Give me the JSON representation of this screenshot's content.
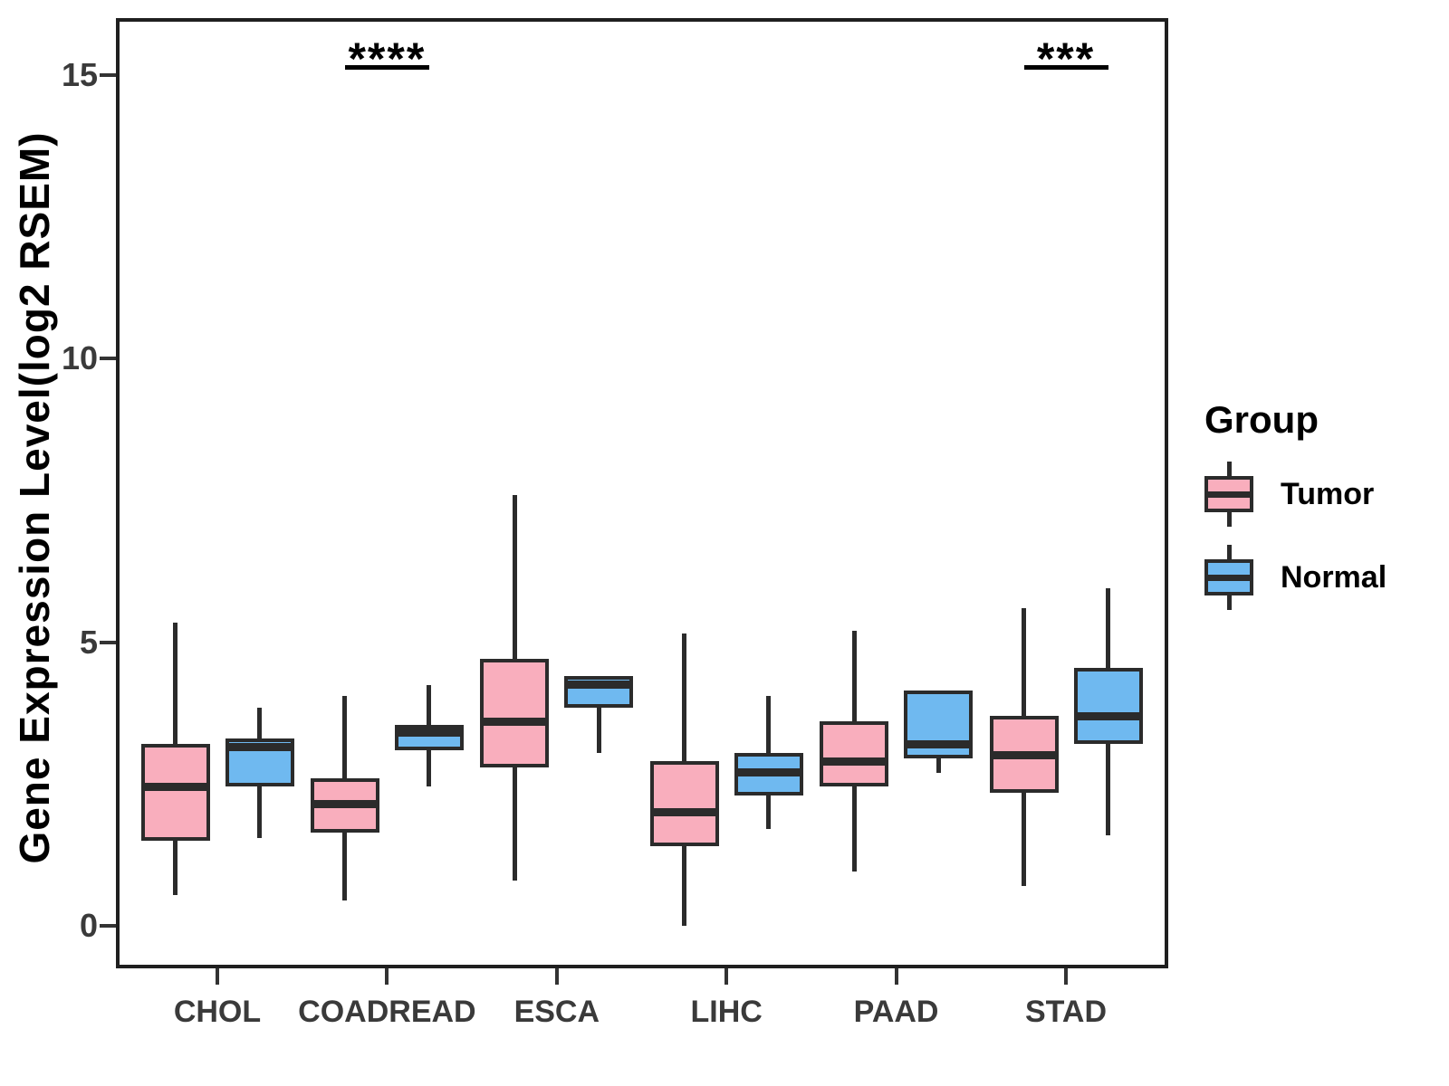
{
  "legend": {
    "title": "Group",
    "entries": [
      {
        "label": "Tumor",
        "color": "#F9AEBD"
      },
      {
        "label": "Normal",
        "color": "#6FB9F0"
      }
    ]
  },
  "chart_data": {
    "type": "boxplot",
    "title": "",
    "xlabel": "",
    "ylabel": "Gene Expression Level(log2 RSEM)",
    "categories": [
      "CHOL",
      "COADREAD",
      "ESCA",
      "LIHC",
      "PAAD",
      "STAD"
    ],
    "y_ticks": [
      0,
      5,
      10,
      15
    ],
    "ylim": [
      -0.75,
      16.0
    ],
    "grid": false,
    "legend_position": "right",
    "stroke_color": "#2b2b2b",
    "series": [
      {
        "name": "Tumor",
        "fill_color": "#F9AEBD",
        "boxes": [
          {
            "category": "CHOL",
            "whisker_low": 0.55,
            "q1": 1.5,
            "median": 2.45,
            "q3": 3.2,
            "whisker_high": 5.35
          },
          {
            "category": "COADREAD",
            "whisker_low": 0.45,
            "q1": 1.65,
            "median": 2.15,
            "q3": 2.6,
            "whisker_high": 4.05
          },
          {
            "category": "ESCA",
            "whisker_low": 0.8,
            "q1": 2.8,
            "median": 3.6,
            "q3": 4.7,
            "whisker_high": 7.6
          },
          {
            "category": "LIHC",
            "whisker_low": 0.0,
            "q1": 1.4,
            "median": 2.0,
            "q3": 2.9,
            "whisker_high": 5.15
          },
          {
            "category": "PAAD",
            "whisker_low": 0.95,
            "q1": 2.45,
            "median": 2.9,
            "q3": 3.6,
            "whisker_high": 5.2
          },
          {
            "category": "STAD",
            "whisker_low": 0.7,
            "q1": 2.35,
            "median": 3.0,
            "q3": 3.7,
            "whisker_high": 5.6
          }
        ]
      },
      {
        "name": "Normal",
        "fill_color": "#6FB9F0",
        "boxes": [
          {
            "category": "CHOL",
            "whisker_low": 1.55,
            "q1": 2.45,
            "median": 3.15,
            "q3": 3.3,
            "whisker_high": 3.85
          },
          {
            "category": "COADREAD",
            "whisker_low": 2.45,
            "q1": 3.1,
            "median": 3.4,
            "q3": 3.55,
            "whisker_high": 4.25
          },
          {
            "category": "ESCA",
            "whisker_low": 3.05,
            "q1": 3.85,
            "median": 4.25,
            "q3": 4.4,
            "whisker_high": 4.4
          },
          {
            "category": "LIHC",
            "whisker_low": 1.7,
            "q1": 2.3,
            "median": 2.7,
            "q3": 3.05,
            "whisker_high": 4.05
          },
          {
            "category": "PAAD",
            "whisker_low": 2.7,
            "q1": 2.95,
            "median": 3.2,
            "q3": 4.15,
            "whisker_high": 4.15
          },
          {
            "category": "STAD",
            "whisker_low": 1.6,
            "q1": 3.2,
            "median": 3.7,
            "q3": 4.55,
            "whisker_high": 5.95
          }
        ]
      }
    ],
    "significance_annotations": [
      {
        "category": "COADREAD",
        "label": "****"
      },
      {
        "category": "STAD",
        "label": "***"
      }
    ]
  }
}
